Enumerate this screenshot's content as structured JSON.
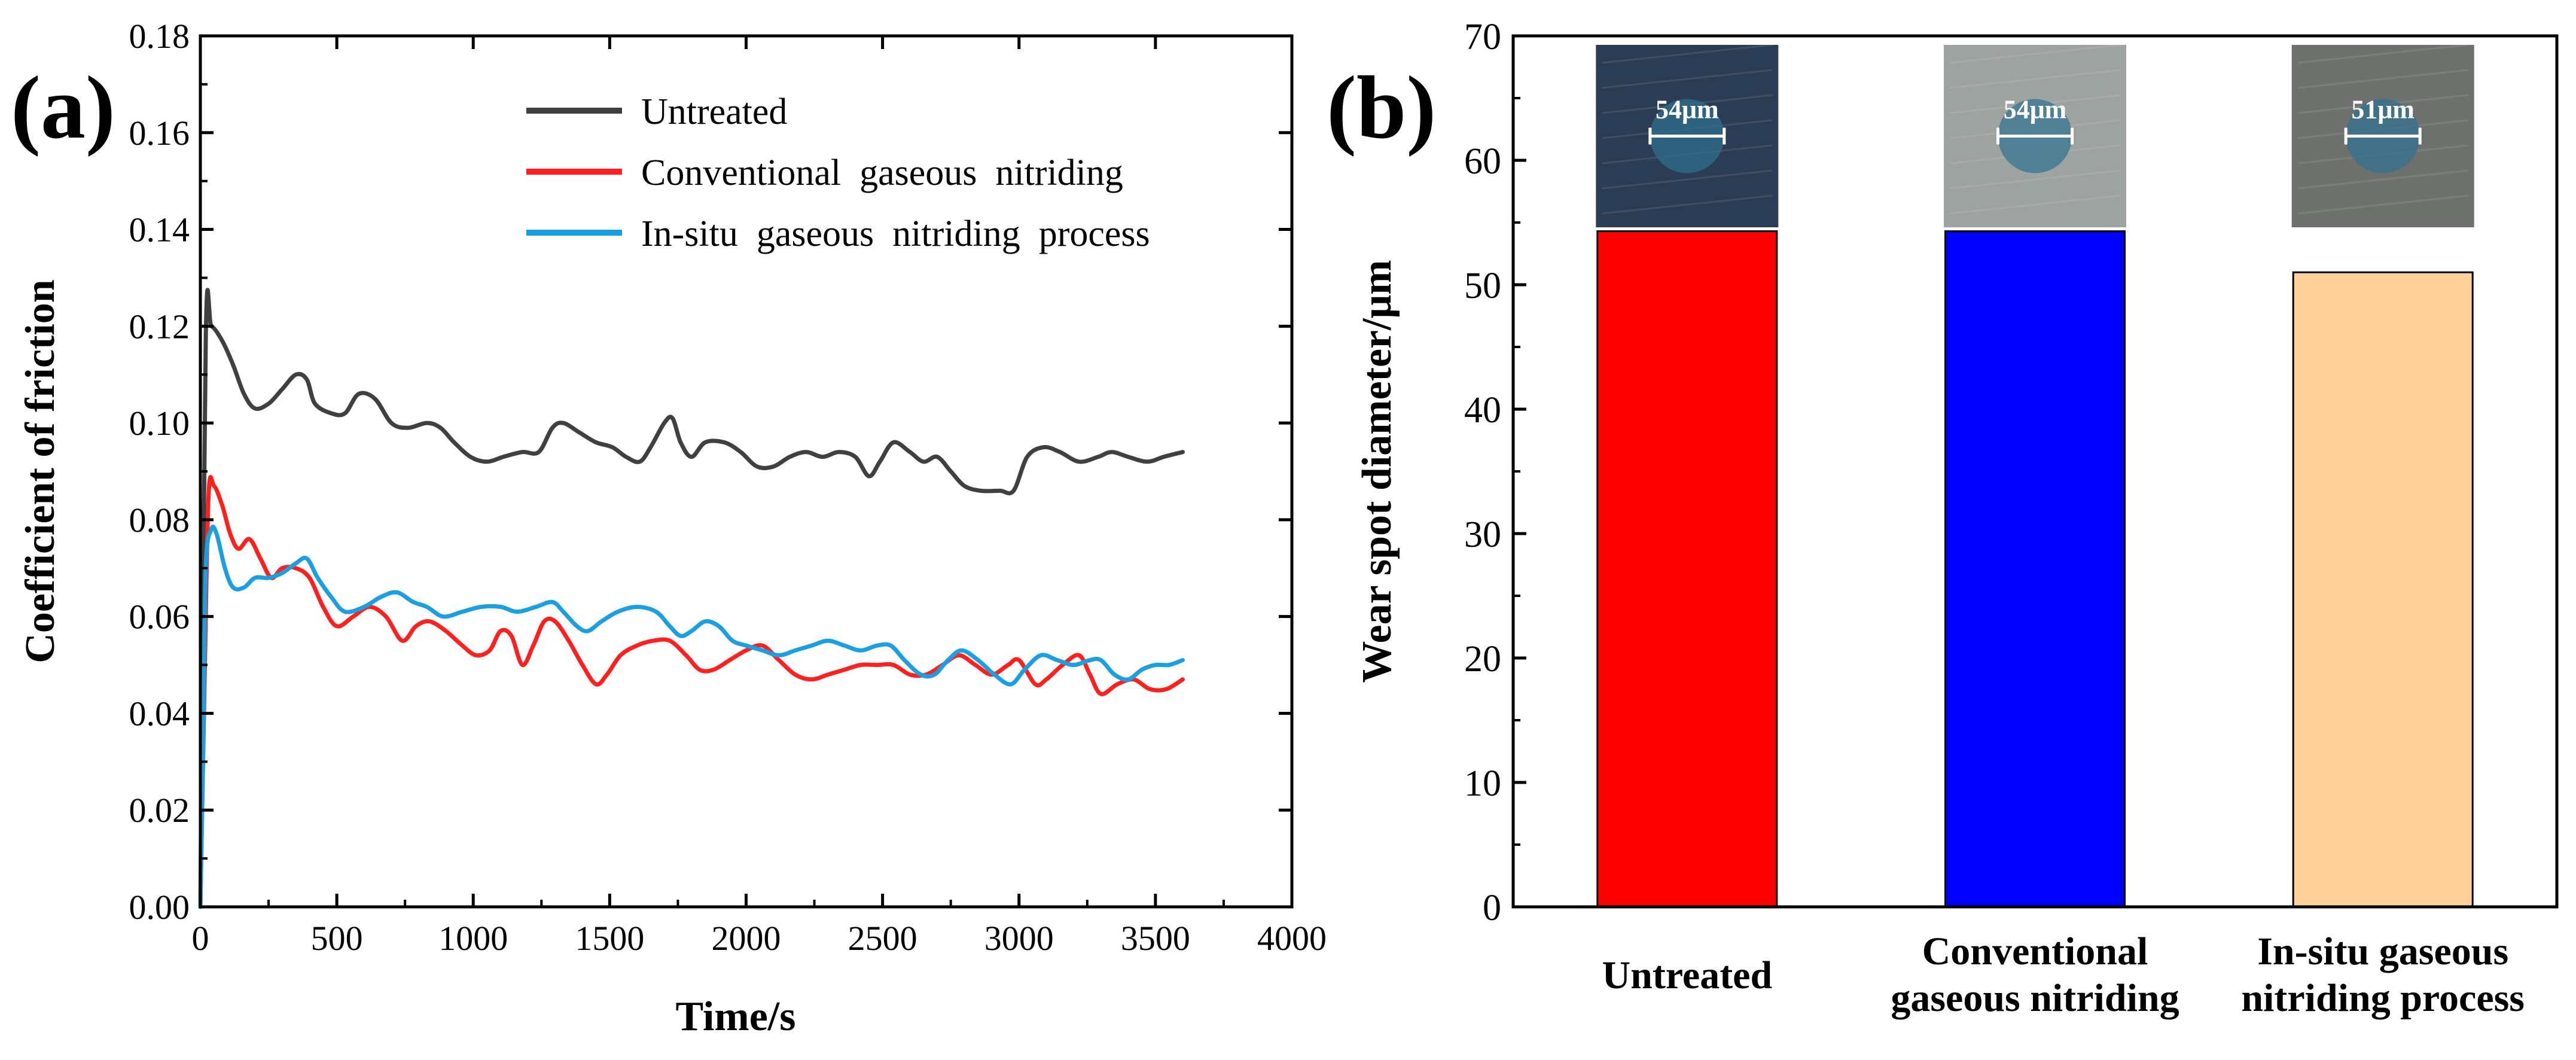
{
  "chart_data": [
    {
      "panel_label": "(a)",
      "type": "line",
      "title": "",
      "xlabel": "Time/s",
      "ylabel": "Coefficient of friction",
      "xlim": [
        0,
        4000
      ],
      "ylim": [
        0,
        0.18
      ],
      "xticks": [
        "0",
        "500",
        "1000",
        "1500",
        "2000",
        "2500",
        "3000",
        "3500",
        "4000"
      ],
      "yticks": [
        "0.00",
        "0.02",
        "0.04",
        "0.06",
        "0.08",
        "0.10",
        "0.12",
        "0.14",
        "0.16",
        "0.18"
      ],
      "legend_position": "top-right",
      "series": [
        {
          "name": "Untreated",
          "color": "#404040",
          "points": [
            [
              0,
              0
            ],
            [
              20,
              0.118
            ],
            [
              40,
              0.12
            ],
            [
              80,
              0.117
            ],
            [
              120,
              0.112
            ],
            [
              160,
              0.106
            ],
            [
              200,
              0.103
            ],
            [
              250,
              0.104
            ],
            [
              300,
              0.107
            ],
            [
              350,
              0.11
            ],
            [
              390,
              0.109
            ],
            [
              420,
              0.104
            ],
            [
              480,
              0.102
            ],
            [
              530,
              0.102
            ],
            [
              580,
              0.106
            ],
            [
              640,
              0.105
            ],
            [
              700,
              0.1
            ],
            [
              760,
              0.099
            ],
            [
              830,
              0.1
            ],
            [
              880,
              0.099
            ],
            [
              930,
              0.096
            ],
            [
              990,
              0.093
            ],
            [
              1050,
              0.092
            ],
            [
              1110,
              0.093
            ],
            [
              1180,
              0.094
            ],
            [
              1240,
              0.094
            ],
            [
              1290,
              0.099
            ],
            [
              1330,
              0.1
            ],
            [
              1390,
              0.098
            ],
            [
              1450,
              0.096
            ],
            [
              1510,
              0.095
            ],
            [
              1560,
              0.093
            ],
            [
              1610,
              0.092
            ],
            [
              1650,
              0.095
            ],
            [
              1700,
              0.1
            ],
            [
              1730,
              0.101
            ],
            [
              1760,
              0.096
            ],
            [
              1800,
              0.093
            ],
            [
              1850,
              0.096
            ],
            [
              1920,
              0.096
            ],
            [
              1980,
              0.094
            ],
            [
              2040,
              0.091
            ],
            [
              2100,
              0.091
            ],
            [
              2160,
              0.093
            ],
            [
              2220,
              0.094
            ],
            [
              2280,
              0.093
            ],
            [
              2340,
              0.094
            ],
            [
              2400,
              0.093
            ],
            [
              2450,
              0.089
            ],
            [
              2490,
              0.092
            ],
            [
              2540,
              0.096
            ],
            [
              2600,
              0.094
            ],
            [
              2650,
              0.092
            ],
            [
              2700,
              0.093
            ],
            [
              2750,
              0.09
            ],
            [
              2800,
              0.087
            ],
            [
              2860,
              0.086
            ],
            [
              2930,
              0.086
            ],
            [
              2980,
              0.086
            ],
            [
              3030,
              0.093
            ],
            [
              3090,
              0.095
            ],
            [
              3150,
              0.094
            ],
            [
              3220,
              0.092
            ],
            [
              3290,
              0.093
            ],
            [
              3340,
              0.094
            ],
            [
              3400,
              0.093
            ],
            [
              3470,
              0.092
            ],
            [
              3530,
              0.093
            ],
            [
              3600,
              0.094
            ]
          ]
        },
        {
          "name": "Conventional  gaseous  nitriding",
          "color": "#ff2020",
          "points": [
            [
              0,
              0
            ],
            [
              15,
              0.045
            ],
            [
              30,
              0.085
            ],
            [
              50,
              0.087
            ],
            [
              80,
              0.083
            ],
            [
              110,
              0.077
            ],
            [
              140,
              0.074
            ],
            [
              180,
              0.076
            ],
            [
              220,
              0.072
            ],
            [
              260,
              0.068
            ],
            [
              300,
              0.07
            ],
            [
              350,
              0.07
            ],
            [
              400,
              0.068
            ],
            [
              450,
              0.062
            ],
            [
              500,
              0.058
            ],
            [
              560,
              0.06
            ],
            [
              620,
              0.062
            ],
            [
              680,
              0.06
            ],
            [
              740,
              0.055
            ],
            [
              790,
              0.058
            ],
            [
              840,
              0.059
            ],
            [
              900,
              0.057
            ],
            [
              960,
              0.054
            ],
            [
              1010,
              0.052
            ],
            [
              1060,
              0.053
            ],
            [
              1100,
              0.057
            ],
            [
              1140,
              0.056
            ],
            [
              1180,
              0.05
            ],
            [
              1220,
              0.054
            ],
            [
              1260,
              0.059
            ],
            [
              1300,
              0.059
            ],
            [
              1350,
              0.055
            ],
            [
              1400,
              0.05
            ],
            [
              1450,
              0.046
            ],
            [
              1490,
              0.048
            ],
            [
              1540,
              0.052
            ],
            [
              1600,
              0.054
            ],
            [
              1660,
              0.055
            ],
            [
              1720,
              0.055
            ],
            [
              1780,
              0.052
            ],
            [
              1830,
              0.049
            ],
            [
              1880,
              0.049
            ],
            [
              1940,
              0.051
            ],
            [
              2000,
              0.053
            ],
            [
              2060,
              0.054
            ],
            [
              2120,
              0.051
            ],
            [
              2180,
              0.048
            ],
            [
              2240,
              0.047
            ],
            [
              2300,
              0.048
            ],
            [
              2360,
              0.049
            ],
            [
              2420,
              0.05
            ],
            [
              2480,
              0.05
            ],
            [
              2540,
              0.05
            ],
            [
              2600,
              0.048
            ],
            [
              2660,
              0.048
            ],
            [
              2720,
              0.05
            ],
            [
              2780,
              0.052
            ],
            [
              2840,
              0.05
            ],
            [
              2900,
              0.048
            ],
            [
              2960,
              0.05
            ],
            [
              3000,
              0.051
            ],
            [
              3060,
              0.046
            ],
            [
              3100,
              0.047
            ],
            [
              3160,
              0.05
            ],
            [
              3220,
              0.052
            ],
            [
              3260,
              0.048
            ],
            [
              3300,
              0.044
            ],
            [
              3360,
              0.046
            ],
            [
              3420,
              0.047
            ],
            [
              3480,
              0.045
            ],
            [
              3540,
              0.045
            ],
            [
              3600,
              0.047
            ]
          ]
        },
        {
          "name": "In-situ  gaseous  nitriding  process",
          "color": "#1aa0e0",
          "points": [
            [
              0,
              0
            ],
            [
              10,
              0.032
            ],
            [
              20,
              0.07
            ],
            [
              40,
              0.078
            ],
            [
              60,
              0.077
            ],
            [
              90,
              0.07
            ],
            [
              120,
              0.066
            ],
            [
              160,
              0.066
            ],
            [
              200,
              0.068
            ],
            [
              250,
              0.068
            ],
            [
              300,
              0.069
            ],
            [
              350,
              0.071
            ],
            [
              390,
              0.072
            ],
            [
              430,
              0.068
            ],
            [
              480,
              0.064
            ],
            [
              530,
              0.061
            ],
            [
              600,
              0.062
            ],
            [
              660,
              0.064
            ],
            [
              720,
              0.065
            ],
            [
              780,
              0.063
            ],
            [
              830,
              0.062
            ],
            [
              890,
              0.06
            ],
            [
              960,
              0.061
            ],
            [
              1030,
              0.062
            ],
            [
              1100,
              0.062
            ],
            [
              1160,
              0.061
            ],
            [
              1230,
              0.062
            ],
            [
              1290,
              0.063
            ],
            [
              1330,
              0.061
            ],
            [
              1380,
              0.058
            ],
            [
              1420,
              0.057
            ],
            [
              1470,
              0.059
            ],
            [
              1530,
              0.061
            ],
            [
              1600,
              0.062
            ],
            [
              1670,
              0.061
            ],
            [
              1720,
              0.058
            ],
            [
              1760,
              0.056
            ],
            [
              1800,
              0.057
            ],
            [
              1850,
              0.059
            ],
            [
              1900,
              0.058
            ],
            [
              1950,
              0.055
            ],
            [
              2000,
              0.054
            ],
            [
              2060,
              0.053
            ],
            [
              2120,
              0.052
            ],
            [
              2180,
              0.053
            ],
            [
              2240,
              0.054
            ],
            [
              2300,
              0.055
            ],
            [
              2360,
              0.054
            ],
            [
              2420,
              0.053
            ],
            [
              2480,
              0.054
            ],
            [
              2530,
              0.054
            ],
            [
              2580,
              0.051
            ],
            [
              2640,
              0.048
            ],
            [
              2690,
              0.048
            ],
            [
              2740,
              0.051
            ],
            [
              2790,
              0.053
            ],
            [
              2850,
              0.051
            ],
            [
              2910,
              0.048
            ],
            [
              2970,
              0.046
            ],
            [
              3020,
              0.049
            ],
            [
              3080,
              0.052
            ],
            [
              3140,
              0.051
            ],
            [
              3200,
              0.05
            ],
            [
              3260,
              0.051
            ],
            [
              3300,
              0.051
            ],
            [
              3350,
              0.048
            ],
            [
              3400,
              0.047
            ],
            [
              3450,
              0.049
            ],
            [
              3500,
              0.05
            ],
            [
              3550,
              0.05
            ],
            [
              3600,
              0.051
            ]
          ]
        }
      ]
    },
    {
      "panel_label": "(b)",
      "type": "bar",
      "title": "",
      "xlabel": "",
      "ylabel": "Wear spot diameter/μm",
      "ylim": [
        0,
        70
      ],
      "yticks": [
        "0",
        "10",
        "20",
        "30",
        "40",
        "50",
        "60",
        "70"
      ],
      "categories": [
        [
          "Untreated"
        ],
        [
          "Conventional",
          "gaseous nitriding"
        ],
        [
          "In-situ gaseous",
          "nitriding process"
        ]
      ],
      "values": [
        54.3,
        54.3,
        51
      ],
      "colors": [
        "#ff0000",
        "#0000ff",
        "#ffd09a"
      ],
      "inset_labels": [
        "54μm",
        "54μm",
        "51μm"
      ],
      "inset_colors": [
        "#2b3c55",
        "#9da3a0",
        "#6e706e"
      ]
    }
  ]
}
